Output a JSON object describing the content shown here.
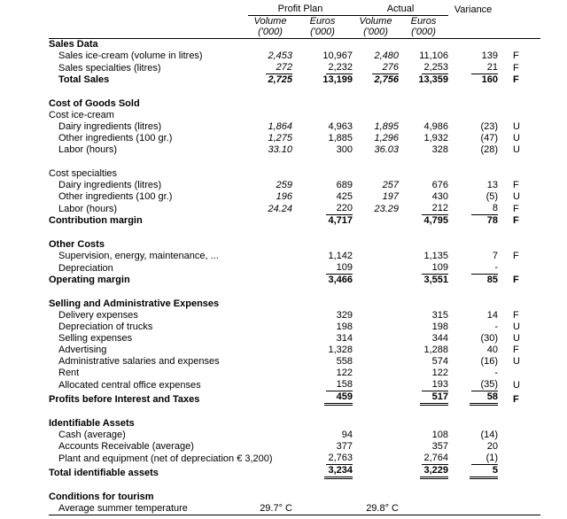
{
  "header": {
    "group_plan": "Profit Plan",
    "group_actual": "Actual",
    "group_variance": "Variance",
    "volume_label": "Volume",
    "euros_label": "Euros",
    "thousands_label": "('000)"
  },
  "rows": [
    {
      "type": "section",
      "label": "Sales Data"
    },
    {
      "type": "item",
      "indent": 1,
      "label": "Sales ice-cream (volume in litres)",
      "pv": "2,453",
      "pe": "10,967",
      "av": "2,480",
      "ae": "11,106",
      "var": "139",
      "flag": "F"
    },
    {
      "type": "item",
      "indent": 1,
      "label": "Sales specialties (litres)",
      "pv": "272",
      "pe": "2,232",
      "av": "276",
      "ae": "2,253",
      "var": "21",
      "flag": "F",
      "underline": [
        "pv",
        "pe",
        "av",
        "ae",
        "var"
      ]
    },
    {
      "type": "total",
      "indent": 1,
      "label": "Total Sales",
      "pv": "2,725",
      "pe": "13,199",
      "av": "2,756",
      "ae": "13,359",
      "var": "160",
      "flag": "F"
    },
    {
      "type": "spacer"
    },
    {
      "type": "section",
      "label": "Cost of Goods Sold"
    },
    {
      "type": "plain",
      "label": "Cost ice-cream"
    },
    {
      "type": "item",
      "indent": 1,
      "label": "Dairy ingredients (litres)",
      "pv": "1,864",
      "pe": "4,963",
      "av": "1,895",
      "ae": "4,986",
      "var": "(23)",
      "flag": "U"
    },
    {
      "type": "item",
      "indent": 1,
      "label": "Other ingredients (100 gr.)",
      "pv": "1,275",
      "pe": "1,885",
      "av": "1,296",
      "ae": "1,932",
      "var": "(47)",
      "flag": "U"
    },
    {
      "type": "item",
      "indent": 1,
      "label": "Labor (hours)",
      "pv": "33.10",
      "pe": "300",
      "av": "36.03",
      "ae": "328",
      "var": "(28)",
      "flag": "U"
    },
    {
      "type": "spacer"
    },
    {
      "type": "plain",
      "label": "Cost specialties"
    },
    {
      "type": "item",
      "indent": 1,
      "label": "Dairy ingredients (litres)",
      "pv": "259",
      "pe": "689",
      "av": "257",
      "ae": "676",
      "var": "13",
      "flag": "F"
    },
    {
      "type": "item",
      "indent": 1,
      "label": "Other ingredients (100 gr.)",
      "pv": "196",
      "pe": "425",
      "av": "197",
      "ae": "430",
      "var": "(5)",
      "flag": "U"
    },
    {
      "type": "item",
      "indent": 1,
      "label": "Labor (hours)",
      "pv": "24.24",
      "pe": "220",
      "av": "23.29",
      "ae": "212",
      "var": "8",
      "flag": "F",
      "underline": [
        "pe",
        "ae",
        "var"
      ]
    },
    {
      "type": "total",
      "label": "Contribution margin",
      "pe": "4,717",
      "ae": "4,795",
      "var": "78",
      "flag": "F"
    },
    {
      "type": "spacer"
    },
    {
      "type": "section",
      "label": "Other Costs"
    },
    {
      "type": "item",
      "indent": 1,
      "label": "Supervision, energy, maintenance, ...",
      "pe": "1,142",
      "ae": "1,135",
      "var": "7",
      "flag": "F"
    },
    {
      "type": "item",
      "indent": 1,
      "label": "Depreciation",
      "pe": "109",
      "ae": "109",
      "var": "-",
      "underline": [
        "pe",
        "ae",
        "var"
      ]
    },
    {
      "type": "total",
      "label": "Operating margin",
      "pe": "3,466",
      "ae": "3,551",
      "var": "85",
      "flag": "F"
    },
    {
      "type": "spacer"
    },
    {
      "type": "section",
      "label": "Selling and Administrative Expenses"
    },
    {
      "type": "item",
      "indent": 1,
      "label": "Delivery expenses",
      "pe": "329",
      "ae": "315",
      "var": "14",
      "flag": "F"
    },
    {
      "type": "item",
      "indent": 1,
      "label": "Depreciation of trucks",
      "pe": "198",
      "ae": "198",
      "var": "-",
      "flag": "U"
    },
    {
      "type": "item",
      "indent": 1,
      "label": "Selling expenses",
      "pe": "314",
      "ae": "344",
      "var": "(30)",
      "flag": "U"
    },
    {
      "type": "item",
      "indent": 1,
      "label": "Advertising",
      "pe": "1,328",
      "ae": "1,288",
      "var": "40",
      "flag": "F"
    },
    {
      "type": "item",
      "indent": 1,
      "label": "Administrative salaries and expenses",
      "pe": "558",
      "ae": "574",
      "var": "(16)",
      "flag": "U"
    },
    {
      "type": "item",
      "indent": 1,
      "label": "Rent",
      "pe": "122",
      "ae": "122",
      "var": "-"
    },
    {
      "type": "item",
      "indent": 1,
      "label": "Allocated central office expenses",
      "pe": "158",
      "ae": "193",
      "var": "(35)",
      "flag": "U",
      "underline": [
        "pe",
        "ae",
        "var"
      ]
    },
    {
      "type": "total",
      "label": "Profits before Interest and Taxes",
      "pe": "459",
      "ae": "517",
      "var": "58",
      "flag": "F",
      "dunderline": [
        "pe",
        "ae",
        "var"
      ]
    },
    {
      "type": "spacer"
    },
    {
      "type": "section",
      "label": "Identifiable Assets"
    },
    {
      "type": "item",
      "indent": 1,
      "label": "Cash (average)",
      "pe": "94",
      "ae": "108",
      "var": "(14)"
    },
    {
      "type": "item",
      "indent": 1,
      "label": "Accounts Receivable (average)",
      "pe": "377",
      "ae": "357",
      "var": "20"
    },
    {
      "type": "item",
      "indent": 1,
      "label": "Plant and equipment (net of depreciation € 3,200)",
      "pe": "2,763",
      "ae": "2,764",
      "var": "(1)",
      "underline": [
        "pe",
        "ae",
        "var"
      ]
    },
    {
      "type": "total",
      "label": "Total identifiable assets",
      "pe": "3,234",
      "ae": "3,229",
      "var": "5",
      "dunderline": [
        "pe",
        "ae",
        "var"
      ]
    },
    {
      "type": "spacer"
    },
    {
      "type": "section",
      "label": "Conditions for tourism"
    },
    {
      "type": "item",
      "indent": 1,
      "label": "Average summer temperature",
      "pv": "29.7° C",
      "av": "29.8° C",
      "plain_volume": true,
      "bottomline": true
    }
  ]
}
